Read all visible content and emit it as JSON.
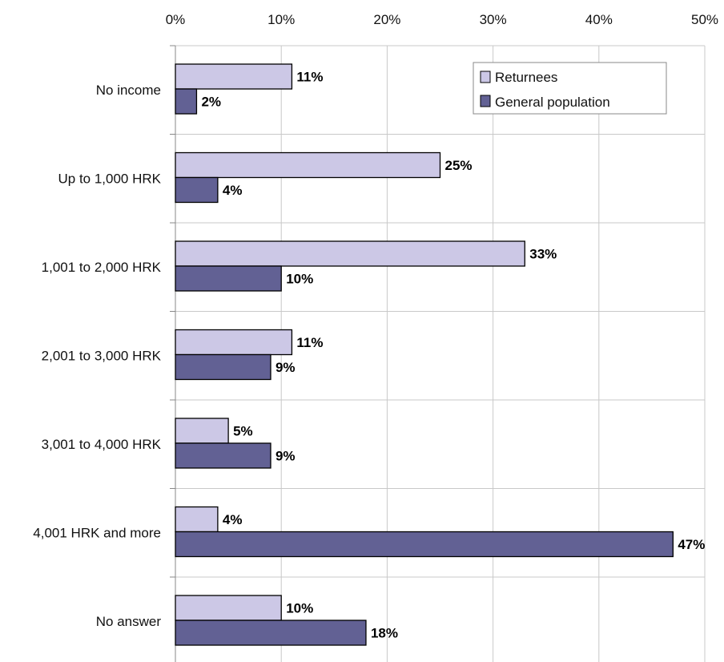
{
  "chart_data": {
    "type": "bar",
    "orientation": "horizontal",
    "x_axis_position": "top",
    "categories": [
      "No income",
      "Up to 1,000 HRK",
      "1,001 to 2,000 HRK",
      "2,001 to 3,000 HRK",
      "3,001 to 4,000 HRK",
      "4,001 HRK and more",
      "No answer"
    ],
    "series": [
      {
        "name": "Returnees",
        "values": [
          11,
          25,
          33,
          11,
          5,
          4,
          10
        ],
        "labels": [
          "11%",
          "25%",
          "33%",
          "11%",
          "5%",
          "4%",
          "10%"
        ],
        "color": "#ccc8e6"
      },
      {
        "name": "General population",
        "values": [
          2,
          4,
          10,
          9,
          9,
          47,
          18
        ],
        "labels": [
          "2%",
          "4%",
          "10%",
          "9%",
          "9%",
          "47%",
          "18%"
        ],
        "color": "#626194"
      }
    ],
    "xlim": [
      0,
      50
    ],
    "ticks": [
      0,
      10,
      20,
      30,
      40,
      50
    ],
    "tick_labels": [
      "0%",
      "10%",
      "20%",
      "30%",
      "40%",
      "50%"
    ],
    "grid": true,
    "legend_position": "top-right"
  }
}
